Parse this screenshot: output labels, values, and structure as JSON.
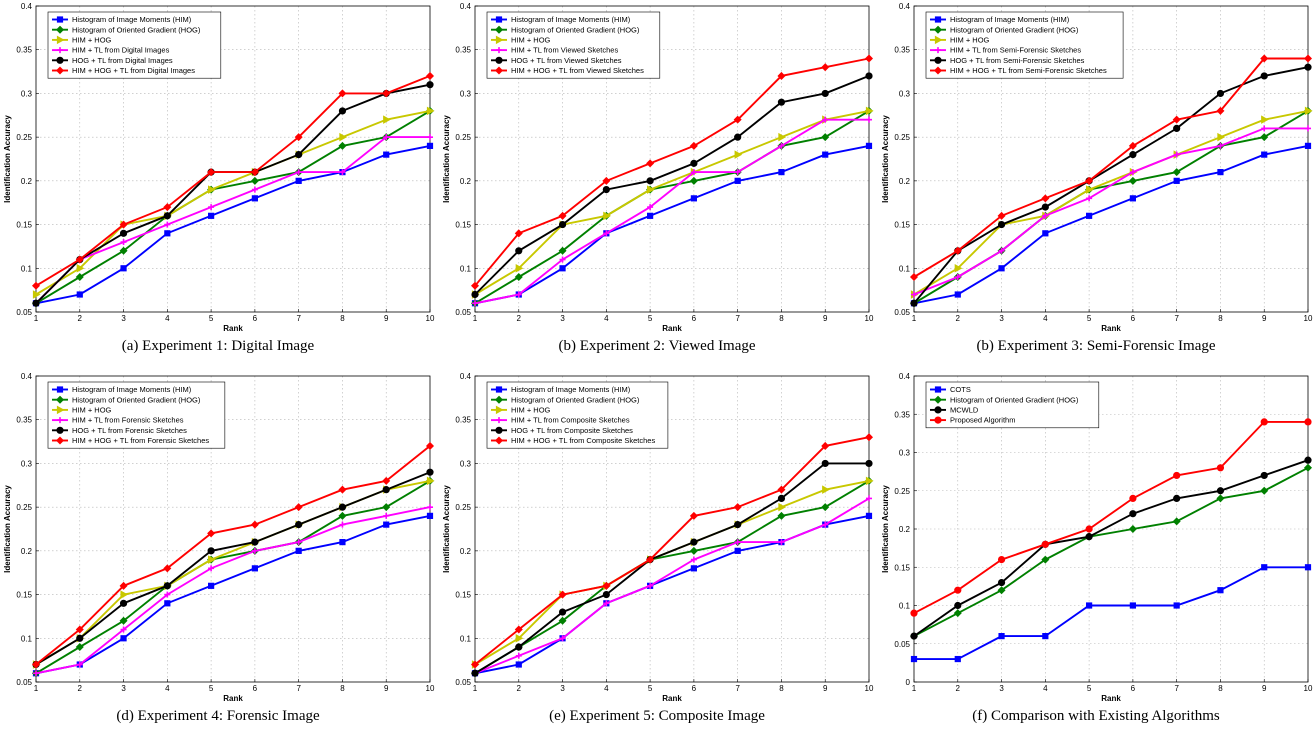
{
  "chart_data": [
    {
      "type": "line",
      "caption": "(a) Experiment 1: Digital Image",
      "xlabel": "Rank",
      "ylabel": "Identification Accuracy",
      "x": [
        1,
        2,
        3,
        4,
        5,
        6,
        7,
        8,
        9,
        10
      ],
      "xlim": [
        1,
        10
      ],
      "ylim": [
        0.05,
        0.4
      ],
      "yticks": [
        0.05,
        0.1,
        0.15,
        0.2,
        0.25,
        0.3,
        0.35,
        0.4
      ],
      "ytick_labels": [
        "0.05",
        "0.1",
        "0.15",
        "0.2",
        "0.25",
        "0.3",
        "0.35",
        "0.4"
      ],
      "grid": true,
      "legend_position": "top-left",
      "series": [
        {
          "name": "Histogram of Image Moments (HIM)",
          "color": "#0000ff",
          "marker": "square",
          "values": [
            0.06,
            0.07,
            0.1,
            0.14,
            0.16,
            0.18,
            0.2,
            0.21,
            0.23,
            0.24
          ]
        },
        {
          "name": "Histogram of Oriented Gradient (HOG)",
          "color": "#008000",
          "marker": "diamond",
          "values": [
            0.06,
            0.09,
            0.12,
            0.16,
            0.19,
            0.2,
            0.21,
            0.24,
            0.25,
            0.28
          ]
        },
        {
          "name": "HIM + HOG",
          "color": "#c8c800",
          "marker": "triangle",
          "values": [
            0.07,
            0.1,
            0.15,
            0.16,
            0.19,
            0.21,
            0.23,
            0.25,
            0.27,
            0.28
          ]
        },
        {
          "name": "HIM + TL from Digital Images",
          "color": "#ff00ff",
          "marker": "plus",
          "values": [
            0.06,
            0.11,
            0.13,
            0.15,
            0.17,
            0.19,
            0.21,
            0.21,
            0.25,
            0.25
          ]
        },
        {
          "name": "HOG + TL from Digital Images",
          "color": "#000000",
          "marker": "circle",
          "values": [
            0.06,
            0.11,
            0.14,
            0.16,
            0.21,
            0.21,
            0.23,
            0.28,
            0.3,
            0.31
          ]
        },
        {
          "name": "HIM + HOG + TL from Digital Images",
          "color": "#ff0000",
          "marker": "diamond",
          "values": [
            0.08,
            0.11,
            0.15,
            0.17,
            0.21,
            0.21,
            0.25,
            0.3,
            0.3,
            0.32
          ]
        }
      ]
    },
    {
      "type": "line",
      "caption": "(b) Experiment 2: Viewed Image",
      "xlabel": "Rank",
      "ylabel": "Identification Accuracy",
      "x": [
        1,
        2,
        3,
        4,
        5,
        6,
        7,
        8,
        9,
        10
      ],
      "xlim": [
        1,
        10
      ],
      "ylim": [
        0.05,
        0.4
      ],
      "yticks": [
        0.05,
        0.1,
        0.15,
        0.2,
        0.25,
        0.3,
        0.35,
        0.4
      ],
      "ytick_labels": [
        "0.05",
        "0.1",
        "0.15",
        "0.2",
        "0.25",
        "0.3",
        "0.35",
        "0.4"
      ],
      "grid": true,
      "legend_position": "top-left",
      "series": [
        {
          "name": "Histogram of Image Moments (HIM)",
          "color": "#0000ff",
          "marker": "square",
          "values": [
            0.06,
            0.07,
            0.1,
            0.14,
            0.16,
            0.18,
            0.2,
            0.21,
            0.23,
            0.24
          ]
        },
        {
          "name": "Histogram of Oriented Gradient (HOG)",
          "color": "#008000",
          "marker": "diamond",
          "values": [
            0.06,
            0.09,
            0.12,
            0.16,
            0.19,
            0.2,
            0.21,
            0.24,
            0.25,
            0.28
          ]
        },
        {
          "name": "HIM + HOG",
          "color": "#c8c800",
          "marker": "triangle",
          "values": [
            0.07,
            0.1,
            0.15,
            0.16,
            0.19,
            0.21,
            0.23,
            0.25,
            0.27,
            0.28
          ]
        },
        {
          "name": "HIM + TL from Viewed Sketches",
          "color": "#ff00ff",
          "marker": "plus",
          "values": [
            0.06,
            0.07,
            0.11,
            0.14,
            0.17,
            0.21,
            0.21,
            0.24,
            0.27,
            0.27
          ]
        },
        {
          "name": "HOG + TL from Viewed Sketches",
          "color": "#000000",
          "marker": "circle",
          "values": [
            0.07,
            0.12,
            0.15,
            0.19,
            0.2,
            0.22,
            0.25,
            0.29,
            0.3,
            0.32
          ]
        },
        {
          "name": "HIM + HOG + TL from Viewed Sketches",
          "color": "#ff0000",
          "marker": "diamond",
          "values": [
            0.08,
            0.14,
            0.16,
            0.2,
            0.22,
            0.24,
            0.27,
            0.32,
            0.33,
            0.34
          ]
        }
      ]
    },
    {
      "type": "line",
      "caption": "(b) Experiment 3: Semi-Forensic Image",
      "xlabel": "Rank",
      "ylabel": "Identification Accuracy",
      "x": [
        1,
        2,
        3,
        4,
        5,
        6,
        7,
        8,
        9,
        10
      ],
      "xlim": [
        1,
        10
      ],
      "ylim": [
        0.05,
        0.4
      ],
      "yticks": [
        0.05,
        0.1,
        0.15,
        0.2,
        0.25,
        0.3,
        0.35,
        0.4
      ],
      "ytick_labels": [
        "0.05",
        "0.1",
        "0.15",
        "0.2",
        "0.25",
        "0.3",
        "0.35",
        "0.4"
      ],
      "grid": true,
      "legend_position": "top-left",
      "series": [
        {
          "name": "Histogram of Image Moments (HIM)",
          "color": "#0000ff",
          "marker": "square",
          "values": [
            0.06,
            0.07,
            0.1,
            0.14,
            0.16,
            0.18,
            0.2,
            0.21,
            0.23,
            0.24
          ]
        },
        {
          "name": "Histogram of Oriented Gradient (HOG)",
          "color": "#008000",
          "marker": "diamond",
          "values": [
            0.06,
            0.09,
            0.12,
            0.16,
            0.19,
            0.2,
            0.21,
            0.24,
            0.25,
            0.28
          ]
        },
        {
          "name": "HIM + HOG",
          "color": "#c8c800",
          "marker": "triangle",
          "values": [
            0.07,
            0.1,
            0.15,
            0.16,
            0.19,
            0.21,
            0.23,
            0.25,
            0.27,
            0.28
          ]
        },
        {
          "name": "HIM + TL from Semi-Forensic Sketches",
          "color": "#ff00ff",
          "marker": "plus",
          "values": [
            0.07,
            0.09,
            0.12,
            0.16,
            0.18,
            0.21,
            0.23,
            0.24,
            0.26,
            0.26
          ]
        },
        {
          "name": "HOG + TL from Semi-Forensic Sketches",
          "color": "#000000",
          "marker": "circle",
          "values": [
            0.06,
            0.12,
            0.15,
            0.17,
            0.2,
            0.23,
            0.26,
            0.3,
            0.32,
            0.33
          ]
        },
        {
          "name": "HIM + HOG + TL from Semi-Forensic Sketches",
          "color": "#ff0000",
          "marker": "diamond",
          "values": [
            0.09,
            0.12,
            0.16,
            0.18,
            0.2,
            0.24,
            0.27,
            0.28,
            0.34,
            0.34
          ]
        }
      ]
    },
    {
      "type": "line",
      "caption": "(d) Experiment 4: Forensic Image",
      "xlabel": "Rank",
      "ylabel": "Identification Accuracy",
      "x": [
        1,
        2,
        3,
        4,
        5,
        6,
        7,
        8,
        9,
        10
      ],
      "xlim": [
        1,
        10
      ],
      "ylim": [
        0.05,
        0.4
      ],
      "yticks": [
        0.05,
        0.1,
        0.15,
        0.2,
        0.25,
        0.3,
        0.35,
        0.4
      ],
      "ytick_labels": [
        "0.05",
        "0.1",
        "0.15",
        "0.2",
        "0.25",
        "0.3",
        "0.35",
        "0.4"
      ],
      "grid": true,
      "legend_position": "top-left",
      "series": [
        {
          "name": "Histogram of Image Moments (HIM)",
          "color": "#0000ff",
          "marker": "square",
          "values": [
            0.06,
            0.07,
            0.1,
            0.14,
            0.16,
            0.18,
            0.2,
            0.21,
            0.23,
            0.24
          ]
        },
        {
          "name": "Histogram of Oriented Gradient (HOG)",
          "color": "#008000",
          "marker": "diamond",
          "values": [
            0.06,
            0.09,
            0.12,
            0.16,
            0.19,
            0.2,
            0.21,
            0.24,
            0.25,
            0.28
          ]
        },
        {
          "name": "HIM + HOG",
          "color": "#c8c800",
          "marker": "triangle",
          "values": [
            0.07,
            0.1,
            0.15,
            0.16,
            0.19,
            0.21,
            0.23,
            0.25,
            0.27,
            0.28
          ]
        },
        {
          "name": "HIM + TL from Forensic Sketches",
          "color": "#ff00ff",
          "marker": "plus",
          "values": [
            0.06,
            0.07,
            0.11,
            0.15,
            0.18,
            0.2,
            0.21,
            0.23,
            0.24,
            0.25
          ]
        },
        {
          "name": "HOG + TL from Forensic Sketches",
          "color": "#000000",
          "marker": "circle",
          "values": [
            0.07,
            0.1,
            0.14,
            0.16,
            0.2,
            0.21,
            0.23,
            0.25,
            0.27,
            0.29
          ]
        },
        {
          "name": "HIM + HOG + TL from Forensic Sketches",
          "color": "#ff0000",
          "marker": "diamond",
          "values": [
            0.07,
            0.11,
            0.16,
            0.18,
            0.22,
            0.23,
            0.25,
            0.27,
            0.28,
            0.32
          ]
        }
      ]
    },
    {
      "type": "line",
      "caption": "(e) Experiment 5: Composite Image",
      "xlabel": "Rank",
      "ylabel": "Identification Accuracy",
      "x": [
        1,
        2,
        3,
        4,
        5,
        6,
        7,
        8,
        9,
        10
      ],
      "xlim": [
        1,
        10
      ],
      "ylim": [
        0.05,
        0.4
      ],
      "yticks": [
        0.05,
        0.1,
        0.15,
        0.2,
        0.25,
        0.3,
        0.35,
        0.4
      ],
      "ytick_labels": [
        "0.05",
        "0.1",
        "0.15",
        "0.2",
        "0.25",
        "0.3",
        "0.35",
        "0.4"
      ],
      "grid": true,
      "legend_position": "top-left",
      "series": [
        {
          "name": "Histogram of Image Moments (HIM)",
          "color": "#0000ff",
          "marker": "square",
          "values": [
            0.06,
            0.07,
            0.1,
            0.14,
            0.16,
            0.18,
            0.2,
            0.21,
            0.23,
            0.24
          ]
        },
        {
          "name": "Histogram of Oriented Gradient (HOG)",
          "color": "#008000",
          "marker": "diamond",
          "values": [
            0.06,
            0.09,
            0.12,
            0.16,
            0.19,
            0.2,
            0.21,
            0.24,
            0.25,
            0.28
          ]
        },
        {
          "name": "HIM + HOG",
          "color": "#c8c800",
          "marker": "triangle",
          "values": [
            0.07,
            0.1,
            0.15,
            0.16,
            0.19,
            0.21,
            0.23,
            0.25,
            0.27,
            0.28
          ]
        },
        {
          "name": "HIM + TL from Composite Sketches",
          "color": "#ff00ff",
          "marker": "plus",
          "values": [
            0.06,
            0.08,
            0.1,
            0.14,
            0.16,
            0.19,
            0.21,
            0.21,
            0.23,
            0.26
          ]
        },
        {
          "name": "HOG + TL from Composite Sketches",
          "color": "#000000",
          "marker": "circle",
          "values": [
            0.06,
            0.09,
            0.13,
            0.15,
            0.19,
            0.21,
            0.23,
            0.26,
            0.3,
            0.3
          ]
        },
        {
          "name": "HIM + HOG + TL from Composite Sketches",
          "color": "#ff0000",
          "marker": "diamond",
          "values": [
            0.07,
            0.11,
            0.15,
            0.16,
            0.19,
            0.24,
            0.25,
            0.27,
            0.32,
            0.33
          ]
        }
      ]
    },
    {
      "type": "line",
      "caption": "(f) Comparison with Existing Algorithms",
      "xlabel": "Rank",
      "ylabel": "Identification Accuracy",
      "x": [
        1,
        2,
        3,
        4,
        5,
        6,
        7,
        8,
        9,
        10
      ],
      "xlim": [
        1,
        10
      ],
      "ylim": [
        0,
        0.4
      ],
      "yticks": [
        0,
        0.05,
        0.1,
        0.15,
        0.2,
        0.25,
        0.3,
        0.35,
        0.4
      ],
      "ytick_labels": [
        "0",
        "0.05",
        "0.1",
        "0.15",
        "0.2",
        "0.25",
        "0.3",
        "0.35",
        "0.4"
      ],
      "grid": true,
      "legend_position": "top-left",
      "series": [
        {
          "name": "COTS",
          "color": "#0000ff",
          "marker": "square",
          "values": [
            0.03,
            0.03,
            0.06,
            0.06,
            0.1,
            0.1,
            0.1,
            0.12,
            0.15,
            0.15
          ]
        },
        {
          "name": "Histogram of Oriented Gradient (HOG)",
          "color": "#008000",
          "marker": "diamond",
          "values": [
            0.06,
            0.09,
            0.12,
            0.16,
            0.19,
            0.2,
            0.21,
            0.24,
            0.25,
            0.28
          ]
        },
        {
          "name": "MCWLD",
          "color": "#000000",
          "marker": "circle",
          "values": [
            0.06,
            0.1,
            0.13,
            0.18,
            0.19,
            0.22,
            0.24,
            0.25,
            0.27,
            0.29
          ]
        },
        {
          "name": "Proposed Algorithm",
          "color": "#ff0000",
          "marker": "circle",
          "values": [
            0.09,
            0.12,
            0.16,
            0.18,
            0.2,
            0.24,
            0.27,
            0.28,
            0.34,
            0.34
          ]
        }
      ]
    }
  ]
}
